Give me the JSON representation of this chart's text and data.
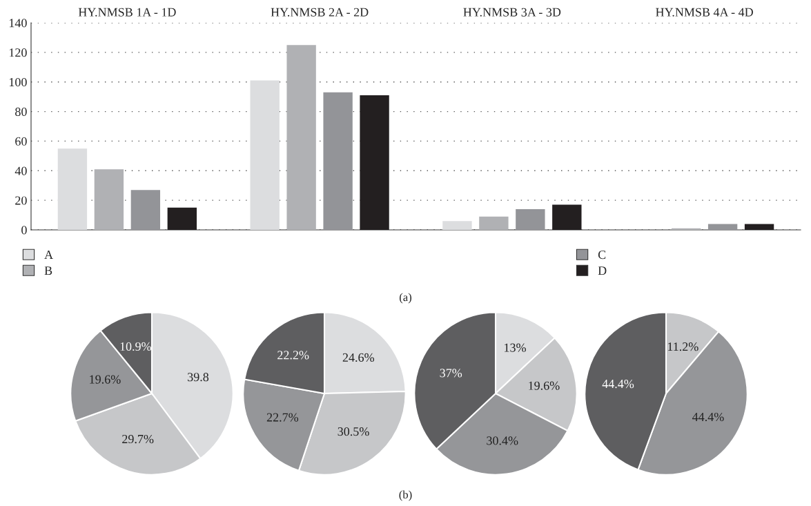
{
  "chart_data": [
    {
      "type": "bar",
      "categories": [
        "HY.NMSB 1A - 1D",
        "HY.NMSB 2A - 2D",
        "HY.NMSB 3A - 3D",
        "HY.NMSB 4A - 4D"
      ],
      "series": [
        {
          "name": "A",
          "color": "#dcdddf",
          "values": [
            55,
            101,
            6,
            0
          ]
        },
        {
          "name": "B",
          "color": "#b0b1b4",
          "values": [
            41,
            125,
            9,
            1
          ]
        },
        {
          "name": "C",
          "color": "#939498",
          "values": [
            27,
            93,
            14,
            4
          ]
        },
        {
          "name": "D",
          "color": "#231f20",
          "values": [
            15,
            91,
            17,
            4
          ]
        }
      ],
      "ylim": [
        0,
        140
      ],
      "yticks": [
        0,
        20,
        40,
        60,
        80,
        100,
        120,
        140
      ],
      "grid": "y",
      "legend": "bottom",
      "annotations": [
        "(a)"
      ]
    },
    {
      "type": "pie",
      "values": [
        39.8,
        29.7,
        19.6,
        10.9
      ],
      "colors": [
        "#dcdddf",
        "#c6c7c9",
        "#959699",
        "#5e5e60"
      ],
      "value_labels": [
        "39.8",
        "29.7%",
        "19.6%",
        "10.9%"
      ]
    },
    {
      "type": "pie",
      "values": [
        24.6,
        30.5,
        22.7,
        22.2
      ],
      "colors": [
        "#dcdddf",
        "#c6c7c9",
        "#959699",
        "#5e5e60"
      ],
      "value_labels": [
        "24.6%",
        "30.5%",
        "22.7%",
        "22.2%"
      ]
    },
    {
      "type": "pie",
      "values": [
        13,
        19.6,
        30.4,
        37
      ],
      "colors": [
        "#dcdddf",
        "#c6c7c9",
        "#959699",
        "#5e5e60"
      ],
      "value_labels": [
        "13%",
        "19.6%",
        "30.4%",
        "37%"
      ]
    },
    {
      "type": "pie",
      "values": [
        11.2,
        44.4,
        44.4
      ],
      "colors": [
        "#c6c7c9",
        "#959699",
        "#5e5e60"
      ],
      "value_labels": [
        "11.2%",
        "44.4%",
        "44.4%"
      ],
      "annotations": [
        "(b)"
      ]
    }
  ]
}
